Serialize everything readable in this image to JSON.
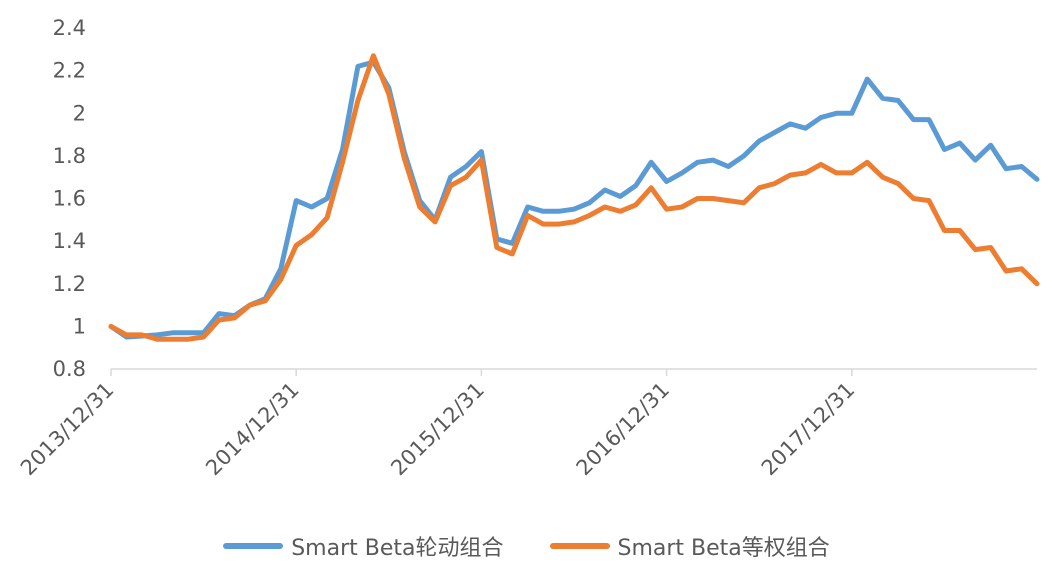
{
  "chart_data": {
    "type": "line",
    "title": "",
    "xlabel": "",
    "ylabel": "",
    "ylim": [
      0.8,
      2.4
    ],
    "yticks": [
      "0.8",
      "1",
      "1.2",
      "1.4",
      "1.6",
      "1.8",
      "2",
      "2.2",
      "2.4"
    ],
    "xticks": [
      "2013/12/31",
      "2014/12/31",
      "2015/12/31",
      "2016/12/31",
      "2017/12/31"
    ],
    "grid": false,
    "legend_position": "bottom",
    "x": [
      "2013-12",
      "2014-01",
      "2014-02",
      "2014-03",
      "2014-04",
      "2014-05",
      "2014-06",
      "2014-07",
      "2014-08",
      "2014-09",
      "2014-10",
      "2014-11",
      "2014-12",
      "2015-01",
      "2015-02",
      "2015-03",
      "2015-04",
      "2015-05",
      "2015-06",
      "2015-07",
      "2015-08",
      "2015-09",
      "2015-10",
      "2015-11",
      "2015-12",
      "2016-01",
      "2016-02",
      "2016-03",
      "2016-04",
      "2016-05",
      "2016-06",
      "2016-07",
      "2016-08",
      "2016-09",
      "2016-10",
      "2016-11",
      "2016-12",
      "2017-01",
      "2017-02",
      "2017-03",
      "2017-04",
      "2017-05",
      "2017-06",
      "2017-07",
      "2017-08",
      "2017-09",
      "2017-10",
      "2017-11",
      "2017-12",
      "2018-01",
      "2018-02",
      "2018-03",
      "2018-04",
      "2018-05",
      "2018-06",
      "2018-07",
      "2018-08",
      "2018-09",
      "2018-10",
      "2018-11",
      "2018-12"
    ],
    "series": [
      {
        "name": "Smart Beta轮动组合",
        "color": "#5B9BD5",
        "values": [
          1.0,
          0.95,
          0.955,
          0.96,
          0.97,
          0.97,
          0.97,
          1.06,
          1.05,
          1.1,
          1.13,
          1.27,
          1.59,
          1.56,
          1.6,
          1.83,
          2.22,
          2.24,
          2.12,
          1.82,
          1.59,
          1.5,
          1.7,
          1.75,
          1.82,
          1.41,
          1.39,
          1.56,
          1.54,
          1.54,
          1.55,
          1.58,
          1.64,
          1.61,
          1.66,
          1.77,
          1.68,
          1.72,
          1.77,
          1.78,
          1.75,
          1.8,
          1.87,
          1.91,
          1.95,
          1.93,
          1.98,
          2.0,
          2.0,
          2.16,
          2.07,
          2.06,
          1.97,
          1.97,
          1.83,
          1.86,
          1.78,
          1.85,
          1.74,
          1.75,
          1.69
        ]
      },
      {
        "name": "Smart Beta等权组合",
        "color": "#ED7D31",
        "values": [
          1.0,
          0.96,
          0.96,
          0.94,
          0.94,
          0.94,
          0.95,
          1.03,
          1.04,
          1.1,
          1.12,
          1.22,
          1.38,
          1.43,
          1.51,
          1.77,
          2.06,
          2.27,
          2.09,
          1.79,
          1.56,
          1.49,
          1.66,
          1.7,
          1.78,
          1.37,
          1.34,
          1.52,
          1.48,
          1.48,
          1.49,
          1.52,
          1.56,
          1.54,
          1.57,
          1.65,
          1.55,
          1.56,
          1.6,
          1.6,
          1.59,
          1.58,
          1.65,
          1.67,
          1.71,
          1.72,
          1.76,
          1.72,
          1.72,
          1.77,
          1.7,
          1.67,
          1.6,
          1.59,
          1.45,
          1.45,
          1.36,
          1.37,
          1.26,
          1.27,
          1.2
        ]
      }
    ]
  }
}
